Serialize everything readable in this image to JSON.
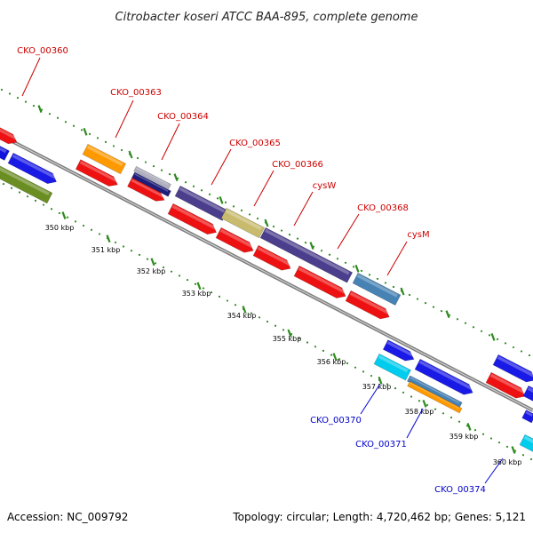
{
  "title": "Citrobacter koseri ATCC BAA-895, complete genome",
  "footer": {
    "accession": "Accession: NC_009792",
    "summary": "Topology: circular; Length: 4,720,462 bp; Genes: 5,121"
  },
  "colors": {
    "backbone": "#8a8a8a",
    "tick": "#2e8b1e",
    "forward_label": "#cc0000",
    "reverse_label": "#0000cc"
  },
  "scale": {
    "unit": "kbp",
    "labels": [
      "350 kbp",
      "351 kbp",
      "352 kbp",
      "353 kbp",
      "354 kbp",
      "355 kbp",
      "356 kbp",
      "357 kbp",
      "358 kbp",
      "359 kbp",
      "360 kbp"
    ]
  },
  "gene_labels": [
    {
      "text": "CKO_00360",
      "strand": "forward"
    },
    {
      "text": "CKO_00363",
      "strand": "forward"
    },
    {
      "text": "CKO_00364",
      "strand": "forward"
    },
    {
      "text": "CKO_00365",
      "strand": "forward"
    },
    {
      "text": "CKO_00366",
      "strand": "forward"
    },
    {
      "text": "cysW",
      "strand": "forward"
    },
    {
      "text": "CKO_00368",
      "strand": "forward"
    },
    {
      "text": "cysM",
      "strand": "forward"
    },
    {
      "text": "CKO_00370",
      "strand": "reverse"
    },
    {
      "text": "CKO_00371",
      "strand": "reverse"
    },
    {
      "text": "CKO_00374",
      "strand": "reverse"
    }
  ]
}
